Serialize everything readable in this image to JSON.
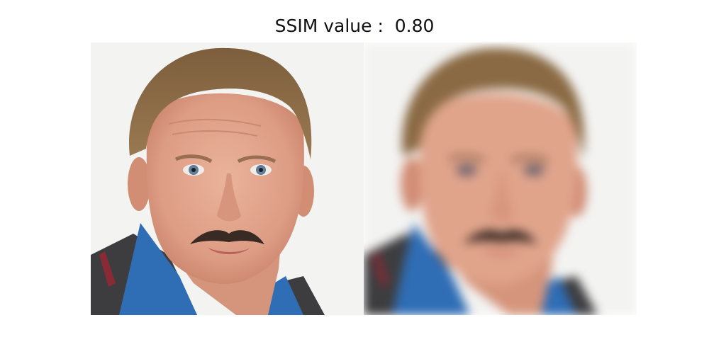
{
  "title": "SSIM value :  0.80",
  "colors": {
    "background": "#f3f3f1",
    "skin": "#e2a48c",
    "skin_shadow": "#c9826a",
    "hair": "#8a6a44",
    "shirt": "#2f6db5",
    "jacket": "#3d3d3f",
    "mustache": "#3a2a24",
    "eyes": "#5f7f9a"
  }
}
